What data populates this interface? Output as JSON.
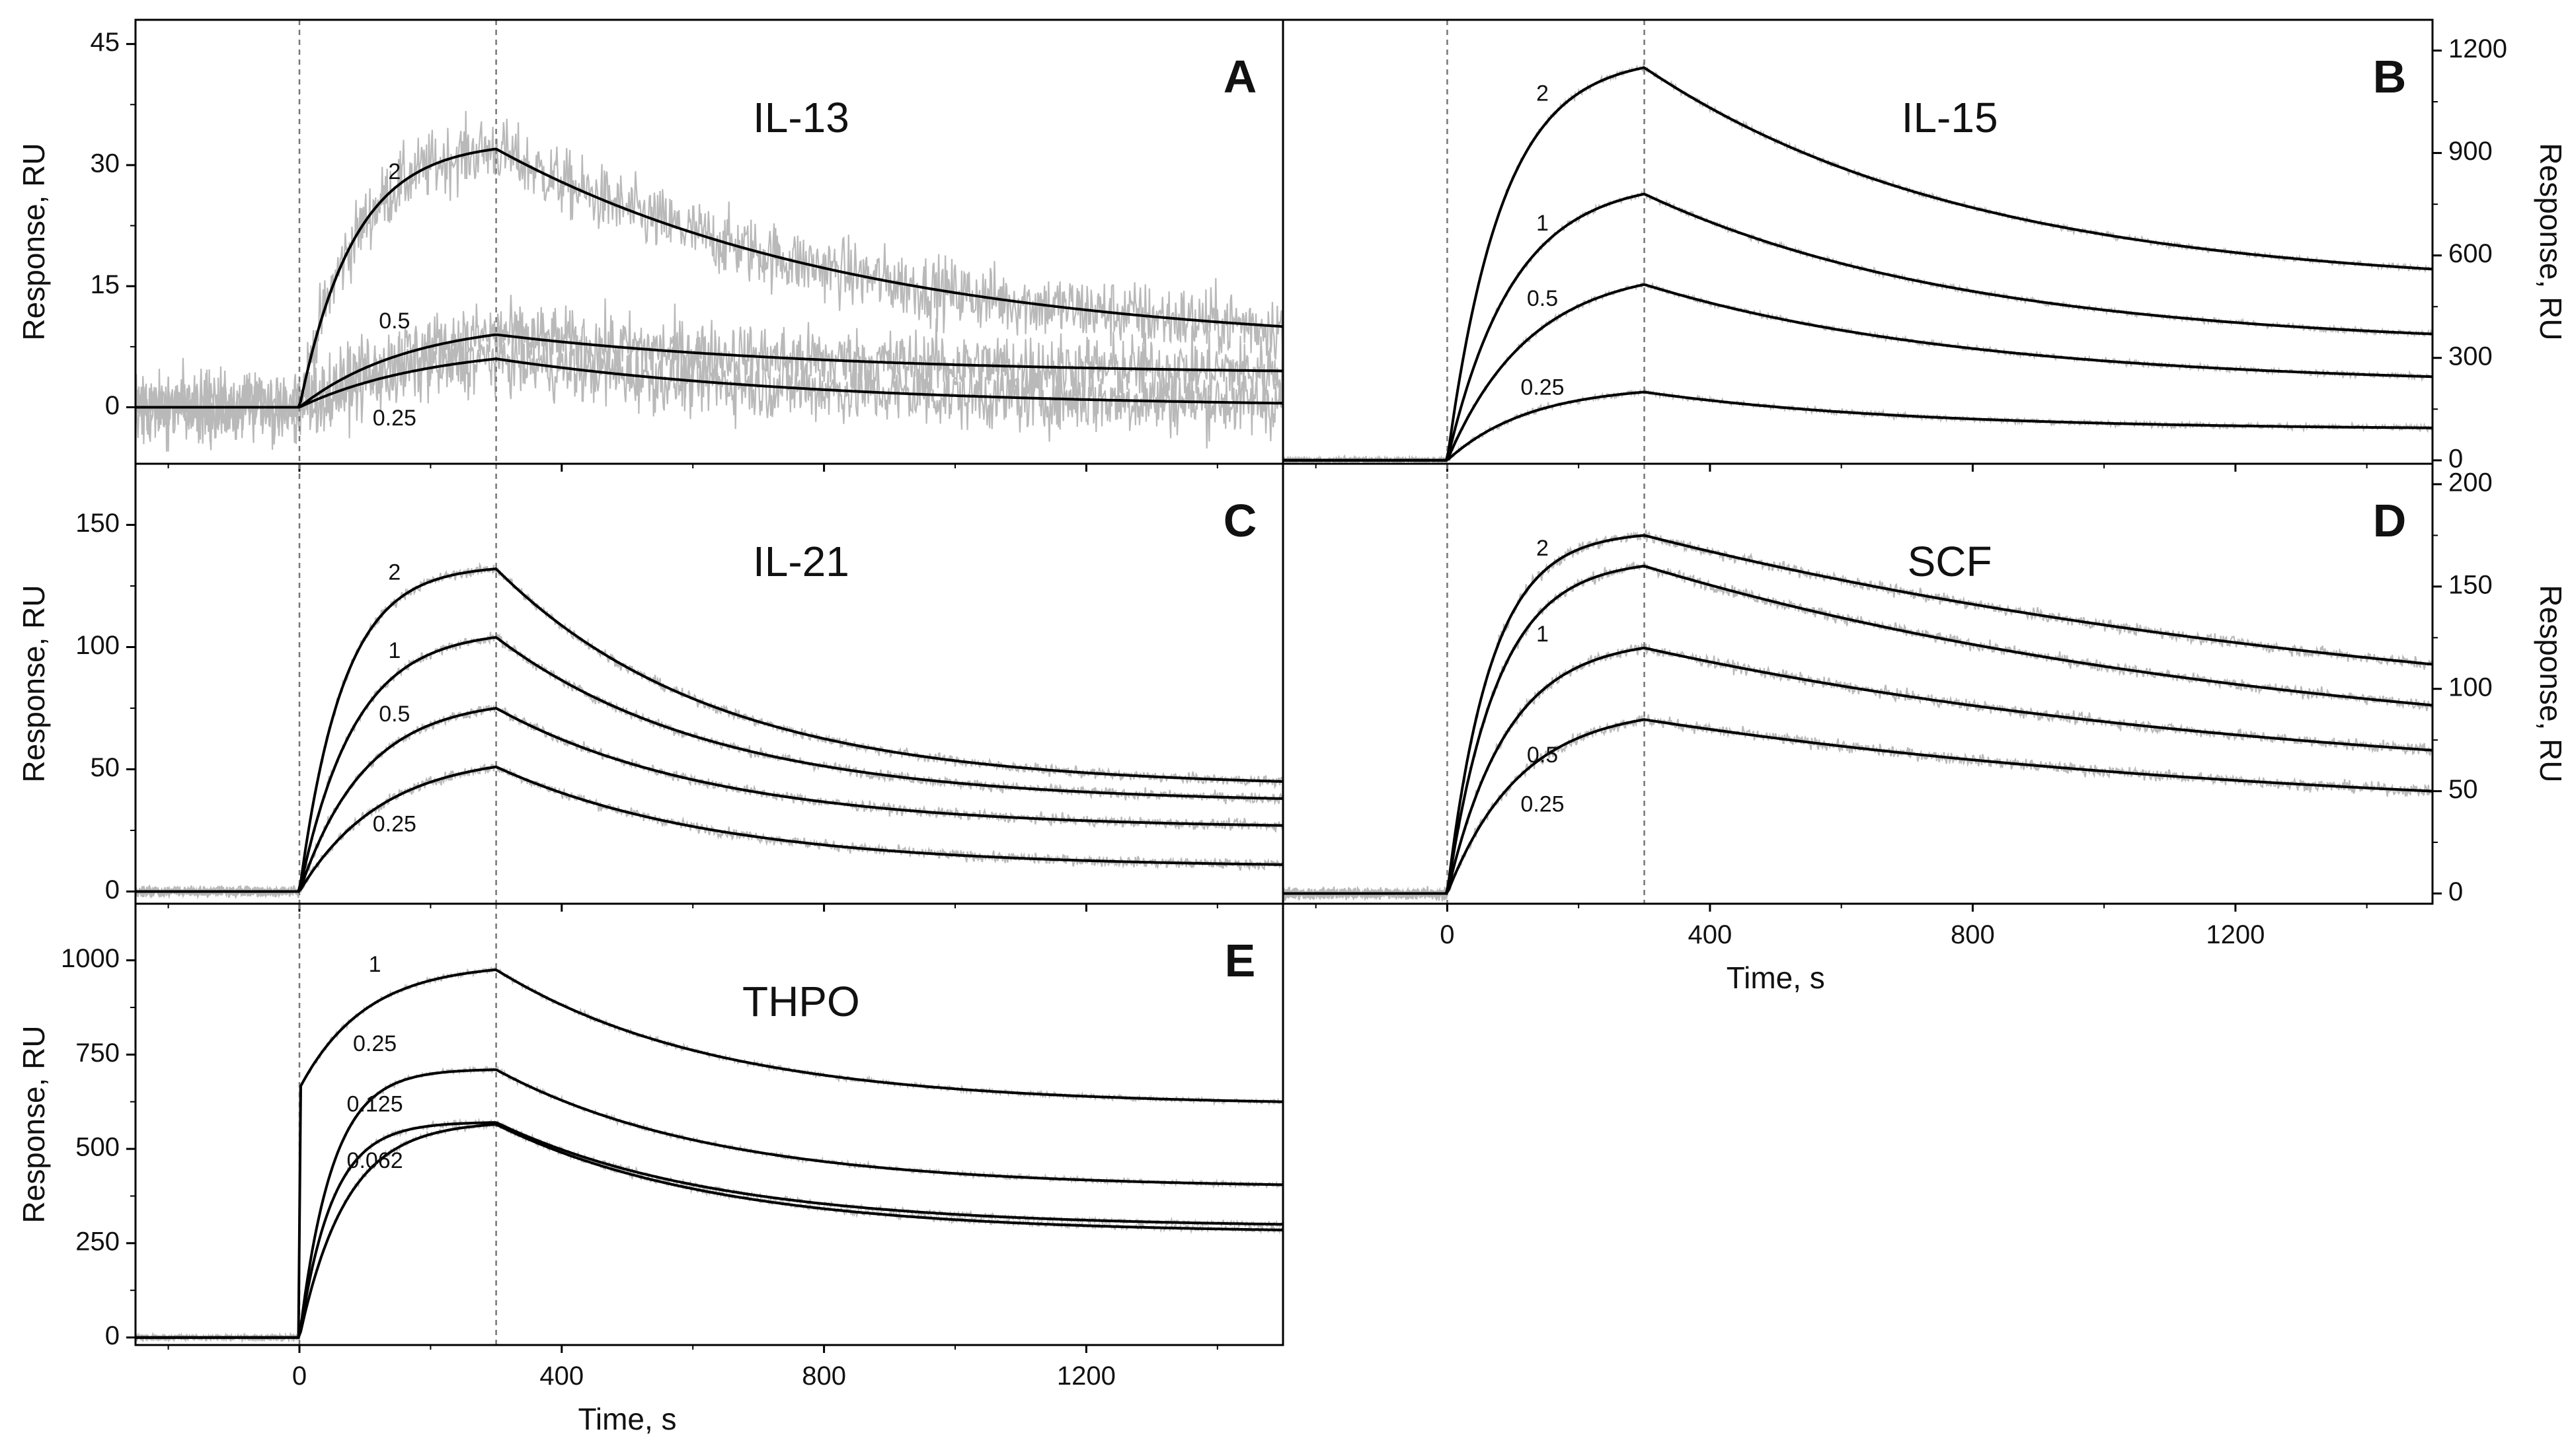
{
  "chart_data": {
    "type": "line",
    "description_units": {
      "x": "Time, s",
      "y": "Response, RU"
    },
    "x_range": [
      -250,
      1500
    ],
    "x_ticks": [
      0,
      400,
      800,
      1200
    ],
    "x_tick_labels": [
      "0",
      "400",
      "800",
      "1200"
    ],
    "association_start_s": 0,
    "dissociation_start_s": 300,
    "colors": {
      "fit": "#000000",
      "raw_data": "#b9b9b9",
      "marker_line": "#777777",
      "frame": "#000000"
    },
    "panels": [
      {
        "letter": "A",
        "title": "IL-13",
        "ylabel": "Response, RU",
        "y_axis_side": "left",
        "ylim": [
          -7,
          48
        ],
        "yticks": [
          0,
          15,
          30,
          45
        ],
        "ytick_labels": [
          "0",
          "15",
          "30",
          "45"
        ],
        "noise_RU": 3.0,
        "show_xlabel": false,
        "series": [
          {
            "name": "2",
            "plateau_end_RU": 32,
            "end_RU": 10,
            "k_assoc": 0.012,
            "k_dissoc": 0.0018,
            "jump_RU": 0,
            "label_at": {
              "t": 145,
              "RU": 29
            }
          },
          {
            "name": "0.5",
            "plateau_end_RU": 9,
            "end_RU": 4.5,
            "k_assoc": 0.006,
            "k_dissoc": 0.002,
            "jump_RU": 0,
            "label_at": {
              "t": 145,
              "RU": 10.5
            }
          },
          {
            "name": "0.25",
            "plateau_end_RU": 6,
            "end_RU": 0.5,
            "k_assoc": 0.005,
            "k_dissoc": 0.002,
            "jump_RU": 0,
            "label_at": {
              "t": 145,
              "RU": -1.5
            }
          }
        ]
      },
      {
        "letter": "B",
        "title": "IL-15",
        "ylabel": "Response, RU",
        "y_axis_side": "right",
        "ylim": [
          -10,
          1290
        ],
        "yticks": [
          0,
          300,
          600,
          900,
          1200
        ],
        "ytick_labels": [
          "0",
          "300",
          "600",
          "900",
          "1200"
        ],
        "noise_RU": 6.0,
        "show_xlabel": false,
        "series": [
          {
            "name": "2",
            "plateau_end_RU": 1150,
            "end_RU": 560,
            "k_assoc": 0.012,
            "k_dissoc": 0.002,
            "jump_RU": 0,
            "label_at": {
              "t": 145,
              "RU": 1070
            }
          },
          {
            "name": "1",
            "plateau_end_RU": 780,
            "end_RU": 370,
            "k_assoc": 0.01,
            "k_dissoc": 0.002,
            "jump_RU": 0,
            "label_at": {
              "t": 145,
              "RU": 690
            }
          },
          {
            "name": "0.5",
            "plateau_end_RU": 515,
            "end_RU": 245,
            "k_assoc": 0.008,
            "k_dissoc": 0.002,
            "jump_RU": 0,
            "label_at": {
              "t": 145,
              "RU": 470
            }
          },
          {
            "name": "0.25",
            "plateau_end_RU": 200,
            "end_RU": 95,
            "k_assoc": 0.008,
            "k_dissoc": 0.0025,
            "jump_RU": 0,
            "label_at": {
              "t": 145,
              "RU": 210
            }
          }
        ]
      },
      {
        "letter": "C",
        "title": "IL-21",
        "ylabel": "Response, RU",
        "y_axis_side": "left",
        "ylim": [
          -5,
          175
        ],
        "yticks": [
          0,
          50,
          100,
          150
        ],
        "ytick_labels": [
          "0",
          "50",
          "100",
          "150"
        ],
        "noise_RU": 1.5,
        "show_xlabel": false,
        "series": [
          {
            "name": "2",
            "plateau_end_RU": 132,
            "end_RU": 45,
            "k_assoc": 0.015,
            "k_dissoc": 0.003,
            "jump_RU": 0,
            "label_at": {
              "t": 145,
              "RU": 130
            }
          },
          {
            "name": "1",
            "plateau_end_RU": 104,
            "end_RU": 38,
            "k_assoc": 0.012,
            "k_dissoc": 0.003,
            "jump_RU": 0,
            "label_at": {
              "t": 145,
              "RU": 98
            }
          },
          {
            "name": "0.5",
            "plateau_end_RU": 75,
            "end_RU": 27,
            "k_assoc": 0.01,
            "k_dissoc": 0.003,
            "jump_RU": 0,
            "label_at": {
              "t": 145,
              "RU": 72
            }
          },
          {
            "name": "0.25",
            "plateau_end_RU": 51,
            "end_RU": 11,
            "k_assoc": 0.008,
            "k_dissoc": 0.003,
            "jump_RU": 0,
            "label_at": {
              "t": 145,
              "RU": 27
            }
          }
        ]
      },
      {
        "letter": "D",
        "title": "SCF",
        "ylabel": "Response, RU",
        "y_axis_side": "right",
        "ylim": [
          -5,
          210
        ],
        "yticks": [
          0,
          50,
          100,
          150,
          200
        ],
        "ytick_labels": [
          "0",
          "50",
          "100",
          "150",
          "200"
        ],
        "noise_RU": 2.0,
        "show_xlabel": true,
        "xlabel": "Time, s",
        "series": [
          {
            "name": "2",
            "plateau_end_RU": 175,
            "end_RU": 112,
            "k_assoc": 0.015,
            "k_dissoc": 0.0008,
            "jump_RU": 0,
            "label_at": {
              "t": 145,
              "RU": 168
            }
          },
          {
            "name": "1",
            "plateau_end_RU": 160,
            "end_RU": 92,
            "k_assoc": 0.013,
            "k_dissoc": 0.001,
            "jump_RU": 0,
            "label_at": {
              "t": 145,
              "RU": 126
            }
          },
          {
            "name": "0.5",
            "plateau_end_RU": 120,
            "end_RU": 70,
            "k_assoc": 0.011,
            "k_dissoc": 0.001,
            "jump_RU": 0,
            "label_at": {
              "t": 145,
              "RU": 67
            }
          },
          {
            "name": "0.25",
            "plateau_end_RU": 85,
            "end_RU": 50,
            "k_assoc": 0.009,
            "k_dissoc": 0.001,
            "jump_RU": 0,
            "label_at": {
              "t": 145,
              "RU": 43
            }
          }
        ]
      },
      {
        "letter": "E",
        "title": "THPO",
        "ylabel": "Response, RU",
        "y_axis_side": "left",
        "ylim": [
          -20,
          1150
        ],
        "yticks": [
          0,
          250,
          500,
          750,
          1000
        ],
        "ytick_labels": [
          "0",
          "250",
          "500",
          "750",
          "1000"
        ],
        "noise_RU": 5.0,
        "show_xlabel": true,
        "xlabel": "Time, s",
        "series": [
          {
            "name": "1",
            "plateau_end_RU": 975,
            "end_RU": 625,
            "k_assoc": 0.01,
            "k_dissoc": 0.003,
            "jump_RU": 660,
            "label_at": {
              "t": 115,
              "RU": 985
            }
          },
          {
            "name": "0.25",
            "plateau_end_RU": 710,
            "end_RU": 405,
            "k_assoc": 0.02,
            "k_dissoc": 0.003,
            "jump_RU": 0,
            "label_at": {
              "t": 115,
              "RU": 775
            }
          },
          {
            "name": "0.125",
            "plateau_end_RU": 570,
            "end_RU": 300,
            "k_assoc": 0.02,
            "k_dissoc": 0.003,
            "jump_RU": 0,
            "label_at": {
              "t": 115,
              "RU": 615
            }
          },
          {
            "name": "0.062",
            "plateau_end_RU": 565,
            "end_RU": 285,
            "k_assoc": 0.014,
            "k_dissoc": 0.003,
            "jump_RU": 0,
            "label_at": {
              "t": 115,
              "RU": 465
            }
          }
        ]
      }
    ]
  }
}
